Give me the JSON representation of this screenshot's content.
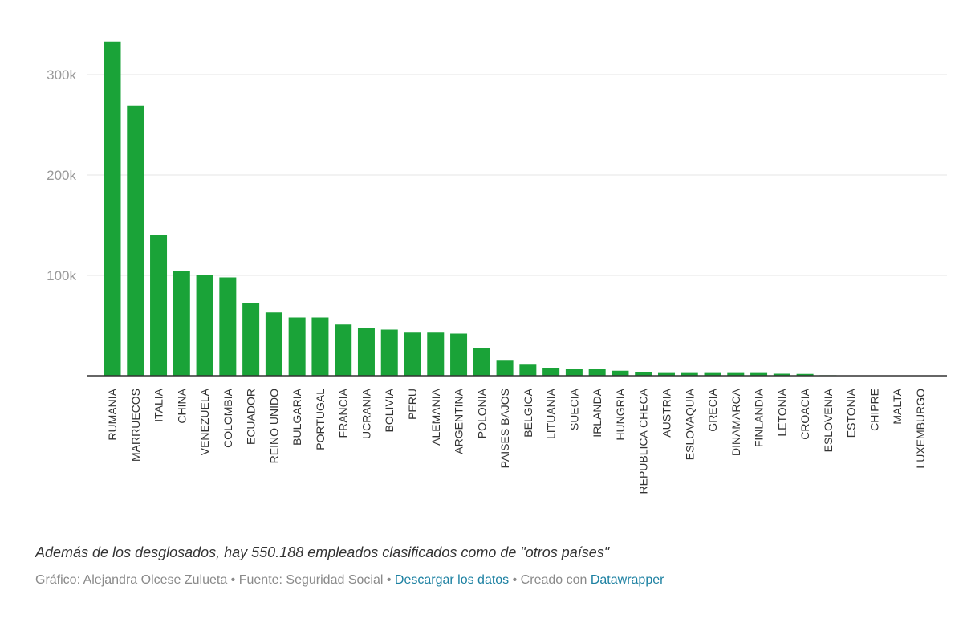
{
  "chart_data": {
    "type": "bar",
    "categories": [
      "RUMANIA",
      "MARRUECOS",
      "ITALIA",
      "CHINA",
      "VENEZUELA",
      "COLOMBIA",
      "ECUADOR",
      "REINO UNIDO",
      "BULGARIA",
      "PORTUGAL",
      "FRANCIA",
      "UCRANIA",
      "BOLIVIA",
      "PERU",
      "ALEMANIA",
      "ARGENTINA",
      "POLONIA",
      "PAISES BAJOS",
      "BELGICA",
      "LITUANIA",
      "SUECIA",
      "IRLANDA",
      "HUNGRIA",
      "REPUBLICA CHECA",
      "AUSTRIA",
      "ESLOVAQUIA",
      "GRECIA",
      "DINAMARCA",
      "FINLANDIA",
      "LETONIA",
      "CROACIA",
      "ESLOVENIA",
      "ESTONIA",
      "CHIPRE",
      "MALTA",
      "LUXEMBURGO"
    ],
    "values": [
      333000,
      269000,
      140000,
      104000,
      100000,
      98000,
      72000,
      63000,
      58000,
      58000,
      51000,
      48000,
      46000,
      43000,
      43000,
      42000,
      28000,
      15000,
      11000,
      8000,
      6500,
      6500,
      5000,
      4000,
      3500,
      3500,
      3500,
      3500,
      3500,
      2000,
      1800,
      500,
      400,
      300,
      200,
      200
    ],
    "yticks": [
      100000,
      200000,
      300000
    ],
    "ytick_labels": [
      "100k",
      "200k",
      "300k"
    ],
    "ylim": [
      0,
      350000
    ],
    "grid": true,
    "colors": {
      "bar": "#1aa338",
      "grid": "#e6e6e6",
      "axis": "#333333",
      "tick_text": "#999999",
      "label_text": "#333333"
    }
  },
  "note": "Además de los desglosados, hay 550.188 empleados clasificados como de \"otros países\"",
  "footer": {
    "prefix": "Gráfico: Alejandra Olcese Zulueta • Fuente: Seguridad Social • ",
    "download_link": "Descargar los datos",
    "middle": " • Creado con ",
    "datawrapper_link": "Datawrapper"
  }
}
